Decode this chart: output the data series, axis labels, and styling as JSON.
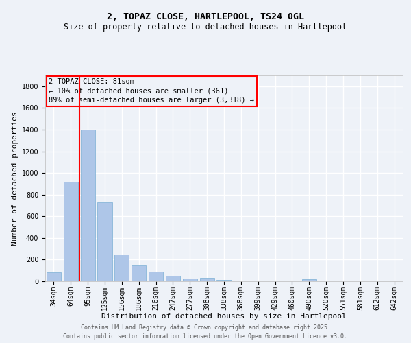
{
  "title_line1": "2, TOPAZ CLOSE, HARTLEPOOL, TS24 0GL",
  "title_line2": "Size of property relative to detached houses in Hartlepool",
  "xlabel": "Distribution of detached houses by size in Hartlepool",
  "ylabel": "Number of detached properties",
  "categories": [
    "34sqm",
    "64sqm",
    "95sqm",
    "125sqm",
    "156sqm",
    "186sqm",
    "216sqm",
    "247sqm",
    "277sqm",
    "308sqm",
    "338sqm",
    "368sqm",
    "399sqm",
    "429sqm",
    "460sqm",
    "490sqm",
    "520sqm",
    "551sqm",
    "581sqm",
    "612sqm",
    "642sqm"
  ],
  "values": [
    80,
    920,
    1400,
    730,
    248,
    148,
    88,
    52,
    28,
    30,
    13,
    8,
    0,
    0,
    0,
    18,
    0,
    0,
    0,
    0,
    0
  ],
  "bar_color": "#aec6e8",
  "bar_edge_color": "#7aafd4",
  "vline_x": 1.5,
  "vline_color": "red",
  "ylim": [
    0,
    1900
  ],
  "yticks": [
    0,
    200,
    400,
    600,
    800,
    1000,
    1200,
    1400,
    1600,
    1800
  ],
  "annotation_box_text": "2 TOPAZ CLOSE: 81sqm\n← 10% of detached houses are smaller (361)\n89% of semi-detached houses are larger (3,318) →",
  "footer_line1": "Contains HM Land Registry data © Crown copyright and database right 2025.",
  "footer_line2": "Contains public sector information licensed under the Open Government Licence v3.0.",
  "background_color": "#eef2f8",
  "grid_color": "#ffffff",
  "title_fontsize": 9.5,
  "subtitle_fontsize": 8.5,
  "axis_label_fontsize": 8,
  "tick_fontsize": 7,
  "annotation_fontsize": 7.5,
  "footer_fontsize": 6
}
